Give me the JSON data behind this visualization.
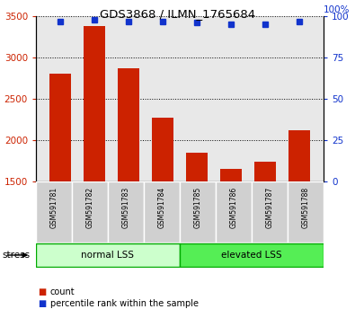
{
  "title": "GDS3868 / ILMN_1765684",
  "samples": [
    "GSM591781",
    "GSM591782",
    "GSM591783",
    "GSM591784",
    "GSM591785",
    "GSM591786",
    "GSM591787",
    "GSM591788"
  ],
  "counts": [
    2800,
    3380,
    2870,
    2270,
    1850,
    1650,
    1740,
    2120
  ],
  "percentiles": [
    97,
    98,
    97,
    97,
    96,
    95,
    95,
    97
  ],
  "ylim_left": [
    1500,
    3500
  ],
  "ylim_right": [
    0,
    100
  ],
  "yticks_left": [
    1500,
    2000,
    2500,
    3000,
    3500
  ],
  "yticks_right": [
    0,
    25,
    50,
    75,
    100
  ],
  "groups": [
    {
      "label": "normal LSS",
      "start": 0,
      "end": 4,
      "color": "#ccffcc"
    },
    {
      "label": "elevated LSS",
      "start": 4,
      "end": 8,
      "color": "#55ee55"
    }
  ],
  "bar_color": "#cc2200",
  "dot_color": "#1133cc",
  "plot_bg_color": "#e8e8e8",
  "tick_color_left": "#cc2200",
  "tick_color_right": "#1133cc",
  "stress_label": "stress",
  "legend_count": "count",
  "legend_percentile": "percentile rank within the sample",
  "grid_color": "black",
  "sample_box_color": "#d0d0d0",
  "group_border_color": "#00aa00"
}
